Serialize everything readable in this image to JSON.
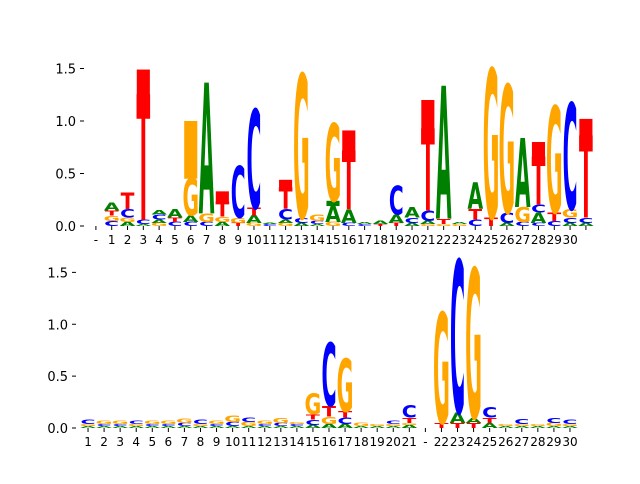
{
  "colors": {
    "A": "#008000",
    "C": "#0000ff",
    "G": "#ffa500",
    "T": "#ff0000",
    "axis": "#000000",
    "background": "#ffffff"
  },
  "chart_data": [
    {
      "type": "sequence-logo",
      "xtick_labels": [
        "-",
        "1",
        "2",
        "3",
        "4",
        "5",
        "6",
        "7",
        "8",
        "9",
        "10",
        "11",
        "12",
        "13",
        "14",
        "15",
        "16",
        "17",
        "18",
        "19",
        "20",
        "21",
        "22",
        "23",
        "24",
        "25",
        "26",
        "27",
        "28",
        "29",
        "30"
      ],
      "ylim": [
        0,
        1.6
      ],
      "yticks": [
        "0.0",
        "0.5",
        "1.0",
        "1.5"
      ],
      "positions": [
        [],
        [
          [
            "C",
            0.05
          ],
          [
            "G",
            0.05
          ],
          [
            "T",
            0.05
          ],
          [
            "A",
            0.07
          ]
        ],
        [
          [
            "A",
            0.04
          ],
          [
            "G",
            0.04
          ],
          [
            "C",
            0.08
          ],
          [
            "T",
            0.15
          ]
        ],
        [
          [
            "A",
            0.02
          ],
          [
            "C",
            0.04
          ],
          [
            "T",
            1.18
          ],
          [
            "Tb",
            0.25
          ]
        ],
        [
          [
            "G",
            0.03
          ],
          [
            "A",
            0.03
          ],
          [
            "C",
            0.05
          ],
          [
            "A",
            0.04
          ]
        ],
        [
          [
            "C",
            0.04
          ],
          [
            "T",
            0.04
          ],
          [
            "A",
            0.08
          ]
        ],
        [
          [
            "C",
            0.04
          ],
          [
            "A",
            0.06
          ],
          [
            "G",
            0.35
          ],
          [
            "Gb",
            0.55
          ]
        ],
        [
          [
            "C",
            0.04
          ],
          [
            "G",
            0.08
          ],
          [
            "A",
            1.23
          ]
        ],
        [
          [
            "A",
            0.04
          ],
          [
            "G",
            0.05
          ],
          [
            "T",
            0.14
          ],
          [
            "Tb",
            0.1
          ]
        ],
        [
          [
            "T",
            0.03
          ],
          [
            "G",
            0.05
          ],
          [
            "C",
            0.48
          ]
        ],
        [
          [
            "G",
            0.03
          ],
          [
            "A",
            0.07
          ],
          [
            "T",
            0.07
          ],
          [
            "C",
            0.93
          ]
        ],
        [
          [
            "C",
            0.02
          ],
          [
            "A",
            0.01
          ]
        ],
        [
          [
            "G",
            0.03
          ],
          [
            "A",
            0.03
          ],
          [
            "C",
            0.1
          ],
          [
            "T",
            0.2
          ],
          [
            "Tb",
            0.08
          ]
        ],
        [
          [
            "A",
            0.03
          ],
          [
            "C",
            0.05
          ],
          [
            "G",
            1.35
          ]
        ],
        [
          [
            "A",
            0.02
          ],
          [
            "C",
            0.03
          ],
          [
            "G",
            0.06
          ]
        ],
        [
          [
            "G",
            0.04
          ],
          [
            "A",
            0.15
          ],
          [
            "Ab",
            0.05
          ],
          [
            "G",
            0.73
          ]
        ],
        [
          [
            "C",
            0.03
          ],
          [
            "A",
            0.13
          ],
          [
            "T",
            0.55
          ],
          [
            "Tb",
            0.2
          ]
        ],
        [
          [
            "C",
            0.02
          ],
          [
            "A",
            0.02
          ]
        ],
        [
          [
            "T",
            0.02
          ],
          [
            "A",
            0.03
          ]
        ],
        [
          [
            "T",
            0.03
          ],
          [
            "A",
            0.08
          ],
          [
            "C",
            0.27
          ]
        ],
        [
          [
            "A",
            0.03
          ],
          [
            "C",
            0.05
          ],
          [
            "A",
            0.1
          ]
        ],
        [
          [
            "G",
            0.02
          ],
          [
            "A",
            0.03
          ],
          [
            "C",
            0.1
          ],
          [
            "T",
            0.77
          ],
          [
            "Tb",
            0.28
          ]
        ],
        [
          [
            "G",
            0.02
          ],
          [
            "T",
            0.05
          ],
          [
            "A",
            1.25
          ]
        ],
        [
          [
            "G",
            0.02
          ],
          [
            "A",
            0.02
          ]
        ],
        [
          [
            "C",
            0.06
          ],
          [
            "T",
            0.1
          ],
          [
            "A",
            0.25
          ]
        ],
        [
          [
            "T",
            0.08
          ],
          [
            "G",
            1.4
          ]
        ],
        [
          [
            "A",
            0.03
          ],
          [
            "C",
            0.1
          ],
          [
            "G",
            1.2
          ]
        ],
        [
          [
            "C",
            0.04
          ],
          [
            "G",
            0.14
          ],
          [
            "A",
            0.65
          ]
        ],
        [
          [
            "C",
            0.03
          ],
          [
            "A",
            0.1
          ],
          [
            "C",
            0.07
          ],
          [
            "T",
            0.45
          ],
          [
            "Tb",
            0.15
          ]
        ],
        [
          [
            "C",
            0.05
          ],
          [
            "T",
            0.08
          ],
          [
            "G",
            1.0
          ]
        ],
        [
          [
            "A",
            0.03
          ],
          [
            "C",
            0.05
          ],
          [
            "G",
            0.08
          ],
          [
            "C",
            1.0
          ]
        ],
        [
          [
            "A",
            0.03
          ],
          [
            "C",
            0.05
          ],
          [
            "T",
            0.77
          ],
          [
            "Tb",
            0.17
          ]
        ]
      ]
    },
    {
      "type": "sequence-logo",
      "xtick_labels": [
        "1",
        "2",
        "3",
        "4",
        "5",
        "6",
        "7",
        "8",
        "9",
        "10",
        "11",
        "12",
        "13",
        "14",
        "15",
        "16",
        "17",
        "18",
        "19",
        "20",
        "21",
        "-",
        "22",
        "23",
        "24",
        "25",
        "26",
        "27",
        "28",
        "29",
        "30"
      ],
      "ylim": [
        0,
        1.6
      ],
      "yticks": [
        "0.0",
        "0.5",
        "1.0",
        "1.5"
      ],
      "positions": [
        [
          [
            "A",
            0.02
          ],
          [
            "G",
            0.02
          ],
          [
            "C",
            0.04
          ]
        ],
        [
          [
            "A",
            0.02
          ],
          [
            "C",
            0.02
          ],
          [
            "G",
            0.03
          ]
        ],
        [
          [
            "A",
            0.02
          ],
          [
            "C",
            0.02
          ],
          [
            "G",
            0.03
          ]
        ],
        [
          [
            "A",
            0.02
          ],
          [
            "G",
            0.02
          ],
          [
            "C",
            0.03
          ]
        ],
        [
          [
            "A",
            0.02
          ],
          [
            "C",
            0.02
          ],
          [
            "G",
            0.03
          ]
        ],
        [
          [
            "A",
            0.02
          ],
          [
            "C",
            0.02
          ],
          [
            "G",
            0.03
          ]
        ],
        [
          [
            "A",
            0.02
          ],
          [
            "C",
            0.03
          ],
          [
            "G",
            0.04
          ]
        ],
        [
          [
            "A",
            0.02
          ],
          [
            "G",
            0.02
          ],
          [
            "C",
            0.04
          ]
        ],
        [
          [
            "A",
            0.02
          ],
          [
            "C",
            0.02
          ],
          [
            "G",
            0.03
          ]
        ],
        [
          [
            "A",
            0.02
          ],
          [
            "C",
            0.04
          ],
          [
            "G",
            0.06
          ]
        ],
        [
          [
            "A",
            0.02
          ],
          [
            "G",
            0.04
          ],
          [
            "C",
            0.04
          ]
        ],
        [
          [
            "A",
            0.02
          ],
          [
            "C",
            0.02
          ],
          [
            "G",
            0.03
          ]
        ],
        [
          [
            "A",
            0.02
          ],
          [
            "C",
            0.03
          ],
          [
            "G",
            0.05
          ]
        ],
        [
          [
            "A",
            0.02
          ],
          [
            "C",
            0.02
          ],
          [
            "G",
            0.02
          ]
        ],
        [
          [
            "A",
            0.03
          ],
          [
            "C",
            0.05
          ],
          [
            "T",
            0.05
          ],
          [
            "G",
            0.2
          ]
        ],
        [
          [
            "A",
            0.04
          ],
          [
            "G",
            0.07
          ],
          [
            "T",
            0.1
          ],
          [
            "C",
            0.6
          ]
        ],
        [
          [
            "A",
            0.04
          ],
          [
            "C",
            0.06
          ],
          [
            "T",
            0.06
          ],
          [
            "G",
            0.5
          ]
        ],
        [
          [
            "A",
            0.02
          ],
          [
            "G",
            0.03
          ]
        ],
        [
          [
            "A",
            0.02
          ],
          [
            "G",
            0.02
          ]
        ],
        [
          [
            "A",
            0.02
          ],
          [
            "G",
            0.02
          ],
          [
            "C",
            0.03
          ]
        ],
        [
          [
            "A",
            0.03
          ],
          [
            "G",
            0.02
          ],
          [
            "T",
            0.05
          ],
          [
            "C",
            0.12
          ]
        ],
        [],
        [
          [
            "T",
            0.05
          ],
          [
            "G",
            1.05
          ]
        ],
        [
          [
            "T",
            0.05
          ],
          [
            "A",
            0.1
          ],
          [
            "C",
            1.45
          ]
        ],
        [
          [
            "T",
            0.05
          ],
          [
            "A",
            0.05
          ],
          [
            "G",
            1.42
          ]
        ],
        [
          [
            "A",
            0.05
          ],
          [
            "T",
            0.05
          ],
          [
            "C",
            0.1
          ]
        ],
        [
          [
            "A",
            0.02
          ],
          [
            "G",
            0.02
          ]
        ],
        [
          [
            "A",
            0.02
          ],
          [
            "G",
            0.02
          ],
          [
            "C",
            0.05
          ]
        ],
        [
          [
            "A",
            0.02
          ],
          [
            "G",
            0.02
          ]
        ],
        [
          [
            "A",
            0.02
          ],
          [
            "G",
            0.03
          ],
          [
            "C",
            0.05
          ]
        ],
        [
          [
            "A",
            0.02
          ],
          [
            "G",
            0.02
          ],
          [
            "C",
            0.04
          ]
        ]
      ]
    }
  ]
}
